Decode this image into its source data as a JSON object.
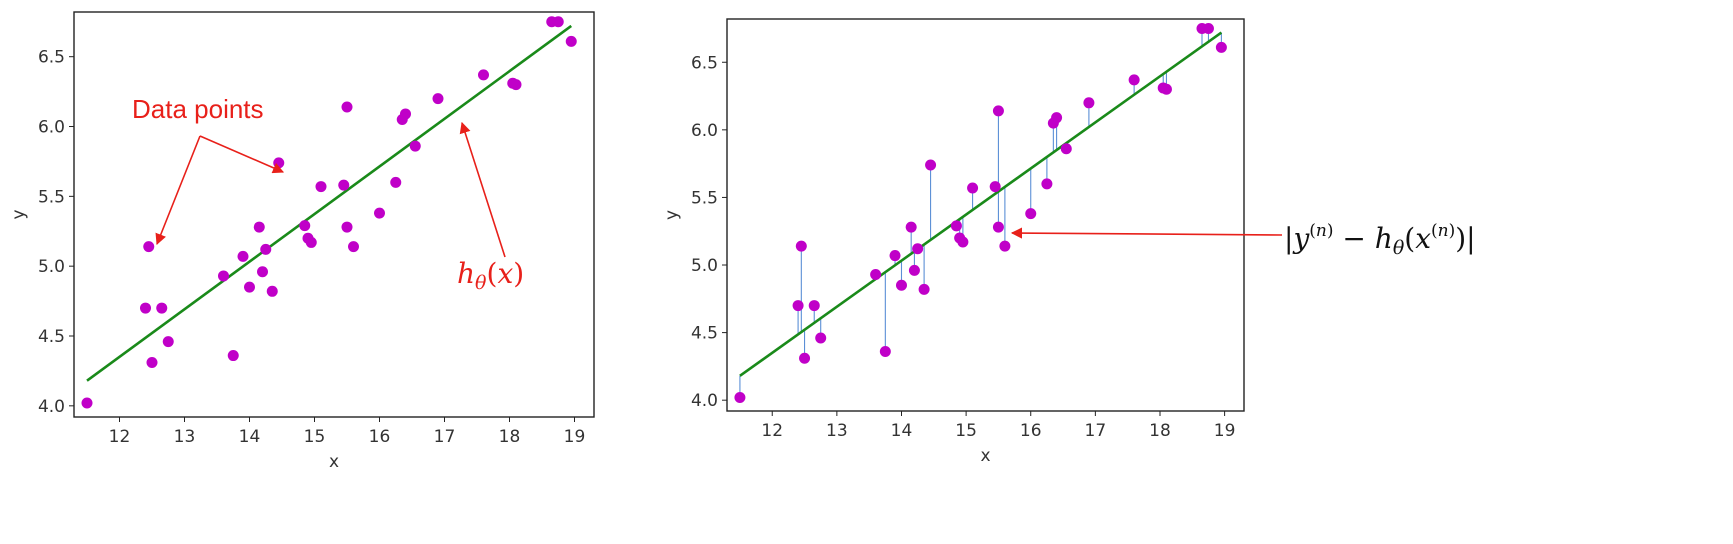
{
  "colors": {
    "points": "#c000c8",
    "line": "#1a8a1a",
    "residual": "#5b8fd6",
    "annotation": "#e8201a",
    "axis": "#222222",
    "text": "#333333"
  },
  "chart_data": [
    {
      "type": "scatter",
      "title": "",
      "xlabel": "x",
      "ylabel": "y",
      "xlim": [
        11.3,
        19.3
      ],
      "ylim": [
        3.92,
        6.82
      ],
      "xticks": [
        "12",
        "13",
        "14",
        "15",
        "16",
        "17",
        "18",
        "19"
      ],
      "yticks": [
        "4.0",
        "4.5",
        "5.0",
        "5.5",
        "6.0",
        "6.5"
      ],
      "grid": false,
      "points": {
        "x": [
          11.5,
          12.4,
          12.45,
          12.5,
          12.65,
          12.75,
          13.6,
          13.75,
          13.9,
          14.0,
          14.15,
          14.2,
          14.25,
          14.35,
          14.45,
          14.85,
          14.9,
          14.95,
          15.1,
          15.45,
          15.5,
          15.5,
          15.6,
          16.0,
          16.25,
          16.35,
          16.4,
          16.55,
          16.9,
          17.6,
          18.05,
          18.1,
          18.65,
          18.75,
          18.95
        ],
        "y": [
          4.02,
          4.7,
          5.14,
          4.31,
          4.7,
          4.46,
          4.93,
          4.36,
          5.07,
          4.85,
          5.28,
          4.96,
          5.12,
          4.82,
          5.74,
          5.29,
          5.2,
          5.17,
          5.57,
          5.58,
          6.14,
          5.28,
          5.14,
          5.38,
          5.6,
          6.05,
          6.09,
          5.86,
          6.2,
          6.37,
          6.31,
          6.3,
          6.75,
          6.75,
          6.61
        ]
      },
      "fit_line": {
        "x": [
          11.5,
          18.95
        ],
        "y": [
          4.18,
          6.72
        ]
      },
      "annotations": {
        "points_label": "Data points",
        "line_label": "hθ(x)"
      }
    },
    {
      "type": "scatter",
      "title": "",
      "xlabel": "x",
      "ylabel": "y",
      "xlim": [
        11.3,
        19.3
      ],
      "ylim": [
        3.92,
        6.82
      ],
      "xticks": [
        "12",
        "13",
        "14",
        "15",
        "16",
        "17",
        "18",
        "19"
      ],
      "yticks": [
        "4.0",
        "4.5",
        "5.0",
        "5.5",
        "6.0",
        "6.5"
      ],
      "grid": false,
      "show_residuals": true,
      "points": {
        "x": [
          11.5,
          12.4,
          12.45,
          12.5,
          12.65,
          12.75,
          13.6,
          13.75,
          13.9,
          14.0,
          14.15,
          14.2,
          14.25,
          14.35,
          14.45,
          14.85,
          14.9,
          14.95,
          15.1,
          15.45,
          15.5,
          15.5,
          15.6,
          16.0,
          16.25,
          16.35,
          16.4,
          16.55,
          16.9,
          17.6,
          18.05,
          18.1,
          18.65,
          18.75,
          18.95
        ],
        "y": [
          4.02,
          4.7,
          5.14,
          4.31,
          4.7,
          4.46,
          4.93,
          4.36,
          5.07,
          4.85,
          5.28,
          4.96,
          5.12,
          4.82,
          5.74,
          5.29,
          5.2,
          5.17,
          5.57,
          5.58,
          6.14,
          5.28,
          5.14,
          5.38,
          5.6,
          6.05,
          6.09,
          5.86,
          6.2,
          6.37,
          6.31,
          6.3,
          6.75,
          6.75,
          6.61
        ]
      },
      "fit_line": {
        "x": [
          11.5,
          18.95
        ],
        "y": [
          4.18,
          6.72
        ]
      },
      "annotations": {
        "residual_label": "|y(n) − hθ(x(n))|"
      }
    }
  ]
}
